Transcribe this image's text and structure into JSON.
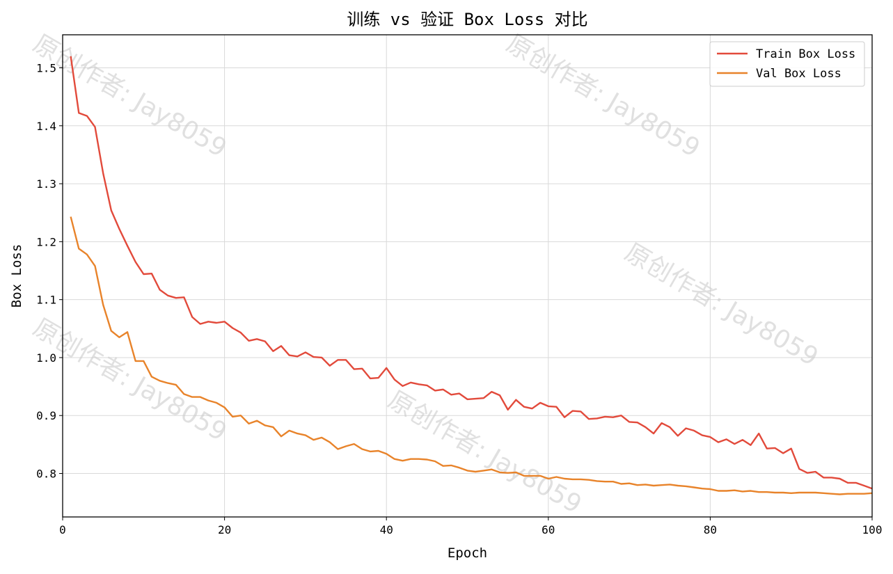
{
  "chart_data": {
    "type": "line",
    "title": "训练 vs 验证 Box Loss 对比",
    "xlabel": "Epoch",
    "ylabel": "Box Loss",
    "xlim": [
      0,
      100
    ],
    "ylim": [
      0.725,
      1.557
    ],
    "xticks": [
      0,
      20,
      40,
      60,
      80,
      100
    ],
    "yticks": [
      0.8,
      0.9,
      1.0,
      1.1,
      1.2,
      1.3,
      1.4,
      1.5
    ],
    "ytick_labels": [
      "0.8",
      "0.9",
      "1.0",
      "1.1",
      "1.2",
      "1.3",
      "1.4",
      "1.5"
    ],
    "grid": true,
    "legend_position": "top-right",
    "x": [
      1,
      2,
      3,
      4,
      5,
      6,
      7,
      8,
      9,
      10,
      11,
      12,
      13,
      14,
      15,
      16,
      17,
      18,
      19,
      20,
      21,
      22,
      23,
      24,
      25,
      26,
      27,
      28,
      29,
      30,
      31,
      32,
      33,
      34,
      35,
      36,
      37,
      38,
      39,
      40,
      41,
      42,
      43,
      44,
      45,
      46,
      47,
      48,
      49,
      50,
      51,
      52,
      53,
      54,
      55,
      56,
      57,
      58,
      59,
      60,
      61,
      62,
      63,
      64,
      65,
      66,
      67,
      68,
      69,
      70,
      71,
      72,
      73,
      74,
      75,
      76,
      77,
      78,
      79,
      80,
      81,
      82,
      83,
      84,
      85,
      86,
      87,
      88,
      89,
      90,
      91,
      92,
      93,
      94,
      95,
      96,
      97,
      98,
      99,
      100
    ],
    "series": [
      {
        "name": "Train Box Loss",
        "color": "#e24a3b",
        "values": [
          1.52,
          1.422,
          1.417,
          1.398,
          1.318,
          1.254,
          1.222,
          1.193,
          1.165,
          1.144,
          1.145,
          1.117,
          1.107,
          1.103,
          1.104,
          1.07,
          1.058,
          1.062,
          1.06,
          1.062,
          1.051,
          1.043,
          1.029,
          1.032,
          1.028,
          1.011,
          1.02,
          1.004,
          1.002,
          1.009,
          1.001,
          1.0,
          0.986,
          0.996,
          0.996,
          0.98,
          0.981,
          0.964,
          0.965,
          0.982,
          0.962,
          0.951,
          0.957,
          0.954,
          0.952,
          0.943,
          0.945,
          0.936,
          0.938,
          0.928,
          0.929,
          0.93,
          0.941,
          0.935,
          0.91,
          0.927,
          0.915,
          0.912,
          0.922,
          0.916,
          0.915,
          0.897,
          0.908,
          0.907,
          0.894,
          0.895,
          0.898,
          0.897,
          0.9,
          0.889,
          0.888,
          0.88,
          0.869,
          0.887,
          0.88,
          0.865,
          0.878,
          0.874,
          0.866,
          0.863,
          0.854,
          0.859,
          0.851,
          0.858,
          0.849,
          0.869,
          0.843,
          0.844,
          0.835,
          0.843,
          0.808,
          0.801,
          0.803,
          0.793,
          0.793,
          0.791,
          0.784,
          0.784,
          0.779,
          0.774
        ]
      },
      {
        "name": "Val Box Loss",
        "color": "#e8832a",
        "values": [
          1.243,
          1.188,
          1.178,
          1.158,
          1.091,
          1.046,
          1.035,
          1.044,
          0.994,
          0.994,
          0.967,
          0.96,
          0.956,
          0.953,
          0.937,
          0.932,
          0.932,
          0.926,
          0.922,
          0.914,
          0.898,
          0.9,
          0.886,
          0.891,
          0.883,
          0.88,
          0.864,
          0.874,
          0.869,
          0.866,
          0.858,
          0.862,
          0.854,
          0.842,
          0.847,
          0.851,
          0.842,
          0.838,
          0.839,
          0.834,
          0.825,
          0.822,
          0.825,
          0.825,
          0.824,
          0.821,
          0.813,
          0.814,
          0.81,
          0.805,
          0.803,
          0.805,
          0.807,
          0.802,
          0.801,
          0.802,
          0.796,
          0.796,
          0.796,
          0.791,
          0.794,
          0.791,
          0.79,
          0.79,
          0.789,
          0.787,
          0.786,
          0.786,
          0.782,
          0.783,
          0.78,
          0.781,
          0.779,
          0.78,
          0.781,
          0.779,
          0.778,
          0.776,
          0.774,
          0.773,
          0.77,
          0.77,
          0.771,
          0.769,
          0.77,
          0.768,
          0.768,
          0.767,
          0.767,
          0.766,
          0.767,
          0.767,
          0.767,
          0.766,
          0.765,
          0.764,
          0.765,
          0.765,
          0.765,
          0.766
        ]
      }
    ]
  },
  "watermark": {
    "text": "原创作者: Jay8059",
    "color": "#c8c8c8"
  }
}
